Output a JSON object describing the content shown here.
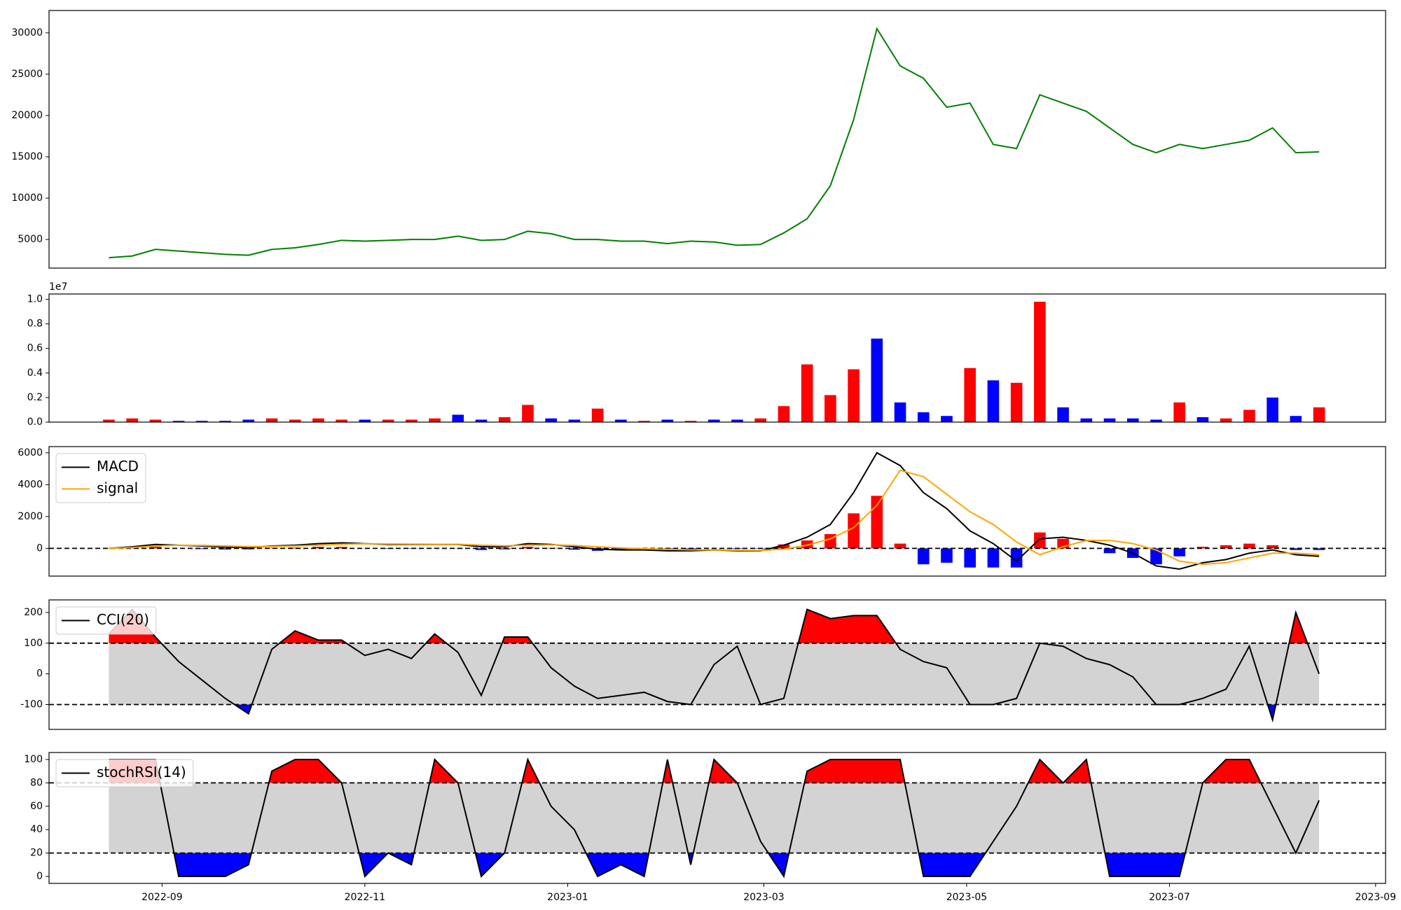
{
  "chart_data": [
    {
      "type": "line",
      "x": [
        "2022-08-16",
        "2022-08-23",
        "2022-08-30",
        "2022-09-06",
        "2022-09-13",
        "2022-09-20",
        "2022-09-27",
        "2022-10-04",
        "2022-10-11",
        "2022-10-18",
        "2022-10-25",
        "2022-11-01",
        "2022-11-08",
        "2022-11-15",
        "2022-11-22",
        "2022-11-29",
        "2022-12-06",
        "2022-12-13",
        "2022-12-20",
        "2022-12-27",
        "2023-01-03",
        "2023-01-10",
        "2023-01-17",
        "2023-01-24",
        "2023-01-31",
        "2023-02-07",
        "2023-02-14",
        "2023-02-21",
        "2023-02-28",
        "2023-03-07",
        "2023-03-14",
        "2023-03-21",
        "2023-03-28",
        "2023-04-04",
        "2023-04-11",
        "2023-04-18",
        "2023-04-25",
        "2023-05-02",
        "2023-05-09",
        "2023-05-16",
        "2023-05-23",
        "2023-05-30",
        "2023-06-06",
        "2023-06-13",
        "2023-06-20",
        "2023-06-27",
        "2023-07-04",
        "2023-07-11",
        "2023-07-18",
        "2023-07-25",
        "2023-08-01",
        "2023-08-08",
        "2023-08-15"
      ],
      "series": [
        {
          "color": "green",
          "values": [
            2800,
            3000,
            3800,
            3600,
            3400,
            3200,
            3100,
            3800,
            4000,
            4400,
            4900,
            4800,
            4900,
            5000,
            5000,
            5400,
            4900,
            5000,
            6000,
            5700,
            5000,
            5000,
            4800,
            4800,
            4500,
            4800,
            4700,
            4300,
            4400,
            5800,
            7500,
            11500,
            19500,
            30500,
            26000,
            24500,
            21000,
            21500,
            16500,
            16000,
            22500,
            21500,
            20500,
            18500,
            16500,
            15500,
            16500,
            16000,
            16500,
            17000,
            18500,
            15500,
            15600
          ]
        }
      ],
      "xlim": [
        "2022-07-29",
        "2023-09-04"
      ],
      "ylim": [
        1540,
        32700
      ],
      "yticks": [
        5000,
        10000,
        15000,
        20000,
        25000,
        30000
      ]
    },
    {
      "type": "bar",
      "x": [
        "2022-08-16",
        "2022-08-23",
        "2022-08-30",
        "2022-09-06",
        "2022-09-13",
        "2022-09-20",
        "2022-09-27",
        "2022-10-04",
        "2022-10-11",
        "2022-10-18",
        "2022-10-25",
        "2022-11-01",
        "2022-11-08",
        "2022-11-15",
        "2022-11-22",
        "2022-11-29",
        "2022-12-06",
        "2022-12-13",
        "2022-12-20",
        "2022-12-27",
        "2023-01-03",
        "2023-01-10",
        "2023-01-17",
        "2023-01-24",
        "2023-01-31",
        "2023-02-07",
        "2023-02-14",
        "2023-02-21",
        "2023-02-28",
        "2023-03-07",
        "2023-03-14",
        "2023-03-21",
        "2023-03-28",
        "2023-04-04",
        "2023-04-11",
        "2023-04-18",
        "2023-04-25",
        "2023-05-02",
        "2023-05-09",
        "2023-05-16",
        "2023-05-23",
        "2023-05-30",
        "2023-06-06",
        "2023-06-13",
        "2023-06-20",
        "2023-06-27",
        "2023-07-04",
        "2023-07-11",
        "2023-07-18",
        "2023-07-25",
        "2023-08-01",
        "2023-08-08",
        "2023-08-15"
      ],
      "values": [
        0.02,
        0.03,
        0.02,
        0.01,
        0.01,
        0.01,
        0.02,
        0.03,
        0.02,
        0.03,
        0.02,
        0.02,
        0.02,
        0.02,
        0.03,
        0.06,
        0.02,
        0.04,
        0.14,
        0.03,
        0.02,
        0.11,
        0.02,
        0.01,
        0.02,
        0.01,
        0.02,
        0.02,
        0.03,
        0.13,
        0.47,
        0.22,
        0.43,
        0.68,
        0.16,
        0.08,
        0.05,
        0.44,
        0.34,
        0.32,
        0.98,
        0.12,
        0.03,
        0.03,
        0.03,
        0.02,
        0.16,
        0.04,
        0.03,
        0.1,
        0.2,
        0.05,
        0.12
      ],
      "colors": [
        "red",
        "red",
        "red",
        "blue",
        "blue",
        "blue",
        "blue",
        "red",
        "red",
        "red",
        "red",
        "blue",
        "red",
        "red",
        "red",
        "blue",
        "blue",
        "red",
        "red",
        "blue",
        "blue",
        "red",
        "blue",
        "red",
        "blue",
        "red",
        "blue",
        "blue",
        "red",
        "red",
        "red",
        "red",
        "red",
        "blue",
        "blue",
        "blue",
        "blue",
        "red",
        "blue",
        "red",
        "red",
        "blue",
        "blue",
        "blue",
        "blue",
        "blue",
        "red",
        "blue",
        "red",
        "red",
        "blue",
        "blue",
        "red"
      ],
      "offset_label": "1e7",
      "xlim": [
        "2022-07-29",
        "2023-09-04"
      ],
      "ylim": [
        0,
        1.043
      ],
      "yticks": [
        {
          "value": 0,
          "label": "0.0"
        },
        {
          "value": 0.2,
          "label": "0.2"
        },
        {
          "value": 0.4,
          "label": "0.4"
        },
        {
          "value": 0.6,
          "label": "0.6"
        },
        {
          "value": 0.8,
          "label": "0.8"
        },
        {
          "value": 1,
          "label": "1.0"
        }
      ]
    },
    {
      "type": "line",
      "x": [
        "2022-08-16",
        "2022-08-23",
        "2022-08-30",
        "2022-09-06",
        "2022-09-13",
        "2022-09-20",
        "2022-09-27",
        "2022-10-04",
        "2022-10-11",
        "2022-10-18",
        "2022-10-25",
        "2022-11-01",
        "2022-11-08",
        "2022-11-15",
        "2022-11-22",
        "2022-11-29",
        "2022-12-06",
        "2022-12-13",
        "2022-12-20",
        "2022-12-27",
        "2023-01-03",
        "2023-01-10",
        "2023-01-17",
        "2023-01-24",
        "2023-01-31",
        "2023-02-07",
        "2023-02-14",
        "2023-02-21",
        "2023-02-28",
        "2023-03-07",
        "2023-03-14",
        "2023-03-21",
        "2023-03-28",
        "2023-04-04",
        "2023-04-11",
        "2023-04-18",
        "2023-04-25",
        "2023-05-02",
        "2023-05-09",
        "2023-05-16",
        "2023-05-23",
        "2023-05-30",
        "2023-06-06",
        "2023-06-13",
        "2023-06-20",
        "2023-06-27",
        "2023-07-04",
        "2023-07-11",
        "2023-07-18",
        "2023-07-25",
        "2023-08-01",
        "2023-08-08",
        "2023-08-15"
      ],
      "series": [
        {
          "name": "MACD",
          "color": "black",
          "values": [
            0,
            100,
            250,
            200,
            150,
            80,
            50,
            150,
            200,
            300,
            350,
            300,
            250,
            250,
            250,
            250,
            100,
            100,
            300,
            250,
            100,
            -50,
            -100,
            -100,
            -150,
            -150,
            -100,
            -150,
            -150,
            200,
            700,
            1500,
            3500,
            6000,
            5200,
            3500,
            2500,
            1100,
            300,
            -800,
            600,
            700,
            500,
            200,
            -300,
            -1100,
            -1300,
            -900,
            -700,
            -300,
            -100,
            -400,
            -500
          ]
        },
        {
          "name": "signal",
          "color": "orange",
          "values": [
            0,
            50,
            150,
            200,
            190,
            150,
            110,
            120,
            150,
            200,
            260,
            290,
            280,
            270,
            260,
            260,
            200,
            160,
            200,
            220,
            180,
            100,
            30,
            -20,
            -60,
            -90,
            -100,
            -120,
            -130,
            -50,
            200,
            600,
            1300,
            2700,
            4900,
            4500,
            3400,
            2300,
            1500,
            400,
            -400,
            100,
            500,
            500,
            300,
            -100,
            -800,
            -1000,
            -900,
            -600,
            -300,
            -300,
            -400
          ]
        }
      ],
      "histogram": {
        "pos_color": "red",
        "neg_color": "blue",
        "values": [
          0,
          50,
          100,
          0,
          -40,
          -70,
          -60,
          30,
          50,
          100,
          90,
          10,
          -30,
          -20,
          -10,
          -10,
          -100,
          -60,
          100,
          30,
          -80,
          -150,
          -130,
          -80,
          -90,
          -60,
          0,
          -30,
          -20,
          250,
          500,
          900,
          2200,
          3300,
          300,
          -1000,
          -900,
          -1200,
          -1200,
          -1200,
          1000,
          600,
          0,
          -300,
          -600,
          -1000,
          -500,
          100,
          200,
          300,
          200,
          -100,
          -100
        ]
      },
      "hlines": [
        0
      ],
      "legend": "upper left",
      "xlim": [
        "2022-07-29",
        "2023-09-04"
      ],
      "ylim": [
        -1740,
        6390
      ],
      "yticks": [
        0,
        2000,
        4000,
        6000
      ]
    },
    {
      "type": "line",
      "x": [
        "2022-08-16",
        "2022-08-23",
        "2022-08-30",
        "2022-09-06",
        "2022-09-13",
        "2022-09-20",
        "2022-09-27",
        "2022-10-04",
        "2022-10-11",
        "2022-10-18",
        "2022-10-25",
        "2022-11-01",
        "2022-11-08",
        "2022-11-15",
        "2022-11-22",
        "2022-11-29",
        "2022-12-06",
        "2022-12-13",
        "2022-12-20",
        "2022-12-27",
        "2023-01-03",
        "2023-01-10",
        "2023-01-17",
        "2023-01-24",
        "2023-01-31",
        "2023-02-07",
        "2023-02-14",
        "2023-02-21",
        "2023-02-28",
        "2023-03-07",
        "2023-03-14",
        "2023-03-21",
        "2023-03-28",
        "2023-04-04",
        "2023-04-11",
        "2023-04-18",
        "2023-04-25",
        "2023-05-02",
        "2023-05-09",
        "2023-05-16",
        "2023-05-23",
        "2023-05-30",
        "2023-06-06",
        "2023-06-13",
        "2023-06-20",
        "2023-06-27",
        "2023-07-04",
        "2023-07-11",
        "2023-07-18",
        "2023-07-25",
        "2023-08-01",
        "2023-08-08",
        "2023-08-15"
      ],
      "series": [
        {
          "name": "CCI(20)",
          "color": "black",
          "values": [
            130,
            210,
            120,
            40,
            -20,
            -80,
            -130,
            80,
            140,
            110,
            110,
            60,
            80,
            50,
            130,
            70,
            -70,
            120,
            120,
            20,
            -40,
            -80,
            -70,
            -60,
            -90,
            -100,
            30,
            90,
            -100,
            -80,
            210,
            180,
            190,
            190,
            80,
            40,
            20,
            -100,
            -100,
            -80,
            100,
            90,
            50,
            30,
            -10,
            -100,
            -100,
            -80,
            -50,
            90,
            -150,
            200,
            0
          ]
        }
      ],
      "hlines": [
        -100,
        100
      ],
      "band_color": "lightgray",
      "upper_color": "red",
      "lower_color": "blue",
      "legend": "upper left",
      "xlim": [
        "2022-07-29",
        "2023-09-04"
      ],
      "ylim": [
        -181,
        241
      ],
      "yticks": [
        -100,
        0,
        100,
        200
      ]
    },
    {
      "type": "line",
      "x": [
        "2022-08-16",
        "2022-08-23",
        "2022-08-30",
        "2022-09-06",
        "2022-09-13",
        "2022-09-20",
        "2022-09-27",
        "2022-10-04",
        "2022-10-11",
        "2022-10-18",
        "2022-10-25",
        "2022-11-01",
        "2022-11-08",
        "2022-11-15",
        "2022-11-22",
        "2022-11-29",
        "2022-12-06",
        "2022-12-13",
        "2022-12-20",
        "2022-12-27",
        "2023-01-03",
        "2023-01-10",
        "2023-01-17",
        "2023-01-24",
        "2023-01-31",
        "2023-02-07",
        "2023-02-14",
        "2023-02-21",
        "2023-02-28",
        "2023-03-07",
        "2023-03-14",
        "2023-03-21",
        "2023-03-28",
        "2023-04-04",
        "2023-04-11",
        "2023-04-18",
        "2023-04-25",
        "2023-05-02",
        "2023-05-09",
        "2023-05-16",
        "2023-05-23",
        "2023-05-30",
        "2023-06-06",
        "2023-06-13",
        "2023-06-20",
        "2023-06-27",
        "2023-07-04",
        "2023-07-11",
        "2023-07-18",
        "2023-07-25",
        "2023-08-01",
        "2023-08-08",
        "2023-08-15"
      ],
      "series": [
        {
          "name": "stochRSI(14)",
          "color": "black",
          "values": [
            100,
            100,
            100,
            0,
            0,
            0,
            10,
            90,
            100,
            100,
            80,
            0,
            20,
            10,
            100,
            80,
            0,
            20,
            100,
            60,
            40,
            0,
            10,
            0,
            100,
            10,
            100,
            80,
            30,
            0,
            90,
            100,
            100,
            100,
            100,
            0,
            0,
            0,
            30,
            60,
            100,
            80,
            100,
            0,
            0,
            0,
            0,
            80,
            100,
            100,
            60,
            20,
            65
          ]
        }
      ],
      "hlines": [
        20,
        80
      ],
      "band_color": "lightgray",
      "upper_color": "red",
      "lower_color": "blue",
      "legend": "upper left",
      "xlim": [
        "2022-07-29",
        "2023-09-04"
      ],
      "ylim": [
        -6,
        106
      ],
      "yticks": [
        0,
        20,
        40,
        60,
        80,
        100
      ],
      "xticks": [
        {
          "value": "2022-09-01",
          "label": "2022-09"
        },
        {
          "value": "2022-11-01",
          "label": "2022-11"
        },
        {
          "value": "2023-01-01",
          "label": "2023-01"
        },
        {
          "value": "2023-03-01",
          "label": "2023-03"
        },
        {
          "value": "2023-05-01",
          "label": "2023-05"
        },
        {
          "value": "2023-07-01",
          "label": "2023-07"
        },
        {
          "value": "2023-09-01",
          "label": "2023-09"
        }
      ]
    }
  ]
}
